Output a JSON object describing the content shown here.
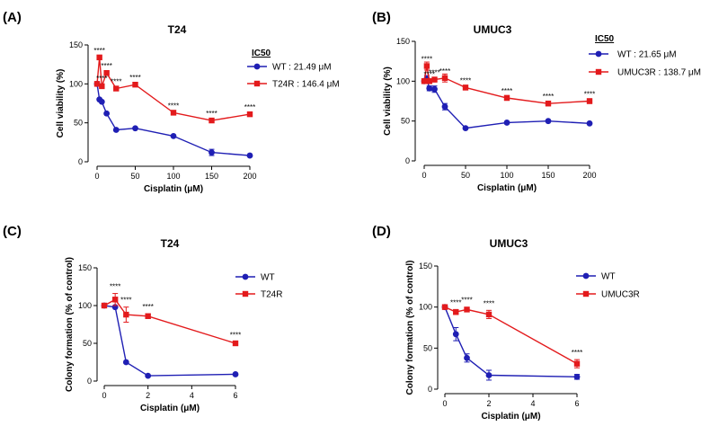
{
  "chart_data": [
    {
      "type": "line",
      "panel": "(A)",
      "title": "T24",
      "xlabel": "Cisplatin (μM)",
      "ylabel": "Cell viability (%)",
      "xlim": [
        0,
        200
      ],
      "ylim": [
        0,
        150
      ],
      "xticks": [
        0,
        50,
        100,
        150,
        200
      ],
      "yticks": [
        0,
        50,
        100,
        150
      ],
      "legend_title": "IC50",
      "series": [
        {
          "name": "WT",
          "legend_text": "WT   :  21.49 μM",
          "color": "#1f1fb4",
          "marker": "circle",
          "x": [
            0,
            3.125,
            6.25,
            12.5,
            25,
            50,
            100,
            150,
            200
          ],
          "y": [
            100,
            80,
            77,
            62,
            41,
            43,
            33,
            12,
            8
          ],
          "err": [
            0,
            0,
            0,
            0,
            0,
            0,
            0,
            4,
            0
          ]
        },
        {
          "name": "T24R",
          "legend_text": "T24R : 146.4  μM",
          "color": "#e31a1c",
          "marker": "square",
          "x": [
            0,
            3.125,
            6.25,
            12.5,
            25,
            50,
            100,
            150,
            200
          ],
          "y": [
            100,
            134,
            97,
            114,
            94,
            99,
            63,
            53,
            61
          ],
          "err": [
            0,
            0,
            0,
            0,
            0,
            0,
            0,
            0,
            0
          ]
        }
      ],
      "annotations": [
        {
          "x": 3.125,
          "y": 134,
          "text": "****"
        },
        {
          "x": 6.25,
          "y": 98,
          "text": "****"
        },
        {
          "x": 12.5,
          "y": 114,
          "text": "****"
        },
        {
          "x": 25,
          "y": 94,
          "text": "****"
        },
        {
          "x": 50,
          "y": 99,
          "text": "****"
        },
        {
          "x": 100,
          "y": 63,
          "text": "****"
        },
        {
          "x": 150,
          "y": 53,
          "text": "****"
        },
        {
          "x": 200,
          "y": 61,
          "text": "****"
        }
      ]
    },
    {
      "type": "line",
      "panel": "(B)",
      "title": "UMUC3",
      "xlabel": "Cisplatin (μM)",
      "ylabel": "Cell viability (%)",
      "xlim": [
        0,
        200
      ],
      "ylim": [
        0,
        150
      ],
      "xticks": [
        0,
        50,
        100,
        150,
        200
      ],
      "yticks": [
        0,
        50,
        100,
        150
      ],
      "legend_title": "IC50",
      "series": [
        {
          "name": "WT",
          "legend_text": "WT      :   21.65 μM",
          "color": "#1f1fb4",
          "marker": "circle",
          "x": [
            0,
            3.125,
            6.25,
            12.5,
            25,
            50,
            100,
            150,
            200
          ],
          "y": [
            100,
            103,
            91,
            90,
            68,
            41,
            48,
            50,
            47
          ],
          "err": [
            3,
            4,
            3,
            4,
            4,
            0,
            0,
            0,
            0
          ]
        },
        {
          "name": "UMUC3R",
          "legend_text": "UMUC3R : 138.7  μM",
          "color": "#e31a1c",
          "marker": "square",
          "x": [
            0,
            3.125,
            6.25,
            12.5,
            25,
            50,
            100,
            150,
            200
          ],
          "y": [
            100,
            119,
            100,
            102,
            104,
            92,
            79,
            72,
            75
          ],
          "err": [
            3,
            5,
            3,
            3,
            5,
            3,
            3,
            3,
            3
          ]
        }
      ],
      "annotations": [
        {
          "x": 3.125,
          "y": 119,
          "text": "****"
        },
        {
          "x": 6.25,
          "y": 100,
          "text": "****"
        },
        {
          "x": 12.5,
          "y": 102,
          "text": "****"
        },
        {
          "x": 25,
          "y": 104,
          "text": "****"
        },
        {
          "x": 50,
          "y": 92,
          "text": "****"
        },
        {
          "x": 100,
          "y": 79,
          "text": "****"
        },
        {
          "x": 150,
          "y": 72,
          "text": "****"
        },
        {
          "x": 200,
          "y": 75,
          "text": "****"
        }
      ]
    },
    {
      "type": "line",
      "panel": "(C)",
      "title": "T24",
      "xlabel": "Cisplatin (μM)",
      "ylabel": "Colony formation (% of control)",
      "xlim": [
        0,
        6
      ],
      "ylim": [
        0,
        150
      ],
      "xticks": [
        0,
        2,
        4,
        6
      ],
      "yticks": [
        0,
        50,
        100,
        150
      ],
      "legend_title": "",
      "series": [
        {
          "name": "WT",
          "legend_text": "WT",
          "color": "#1f1fb4",
          "marker": "circle",
          "x": [
            0,
            0.5,
            1,
            2,
            6
          ],
          "y": [
            100,
            98,
            25,
            7,
            9
          ],
          "err": [
            0,
            0,
            0,
            0,
            0
          ]
        },
        {
          "name": "T24R",
          "legend_text": "T24R",
          "color": "#e31a1c",
          "marker": "square",
          "x": [
            0,
            0.5,
            1,
            2,
            6
          ],
          "y": [
            100,
            108,
            88,
            86,
            50
          ],
          "err": [
            0,
            8,
            10,
            3,
            2
          ]
        }
      ],
      "annotations": [
        {
          "x": 0.5,
          "y": 116,
          "text": "****"
        },
        {
          "x": 1,
          "y": 98,
          "text": "****"
        },
        {
          "x": 2,
          "y": 89,
          "text": "****"
        },
        {
          "x": 6,
          "y": 52,
          "text": "****"
        }
      ]
    },
    {
      "type": "line",
      "panel": "(D)",
      "title": "UMUC3",
      "xlabel": "Cisplatin (μM)",
      "ylabel": "Colony formation (% of control)",
      "xlim": [
        0,
        6
      ],
      "ylim": [
        0,
        150
      ],
      "xticks": [
        0,
        2,
        4,
        6
      ],
      "yticks": [
        0,
        50,
        100,
        150
      ],
      "legend_title": "",
      "series": [
        {
          "name": "WT",
          "legend_text": "WT",
          "color": "#1f1fb4",
          "marker": "circle",
          "x": [
            0,
            0.5,
            1,
            2,
            6
          ],
          "y": [
            100,
            67,
            38,
            17,
            15
          ],
          "err": [
            2,
            8,
            5,
            6,
            3
          ]
        },
        {
          "name": "UMUC3R",
          "legend_text": "UMUC3R",
          "color": "#e31a1c",
          "marker": "square",
          "x": [
            0,
            0.5,
            1,
            2,
            6
          ],
          "y": [
            100,
            94,
            97,
            91,
            31
          ],
          "err": [
            2,
            3,
            2,
            5,
            5
          ]
        }
      ],
      "annotations": [
        {
          "x": 0.5,
          "y": 97,
          "text": "****"
        },
        {
          "x": 1,
          "y": 100,
          "text": "****"
        },
        {
          "x": 2,
          "y": 96,
          "text": "****"
        },
        {
          "x": 6,
          "y": 36,
          "text": "****"
        }
      ]
    }
  ]
}
